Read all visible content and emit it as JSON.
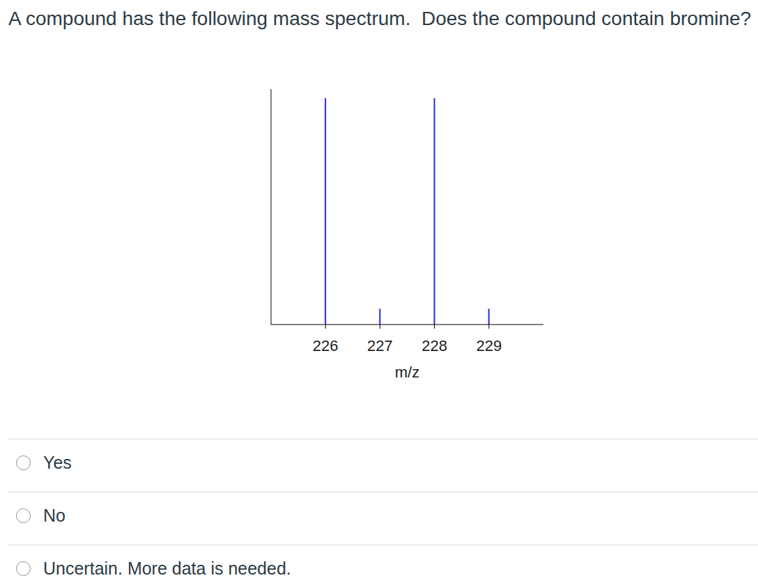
{
  "question": "A compound has the following mass spectrum.  Does the compound contain bromine?",
  "chart_data": {
    "type": "bar",
    "x": [
      226,
      227,
      228,
      229
    ],
    "values": [
      100,
      7,
      100,
      7
    ],
    "color": "#2a2ae0",
    "xlabel": "m/z",
    "xlim": [
      225,
      230
    ],
    "xticks": [
      226,
      227,
      228,
      229
    ],
    "ylim": [
      0,
      104
    ],
    "tick_labels": "x"
  },
  "options": [
    "Yes",
    "No",
    "Uncertain. More data is needed."
  ]
}
